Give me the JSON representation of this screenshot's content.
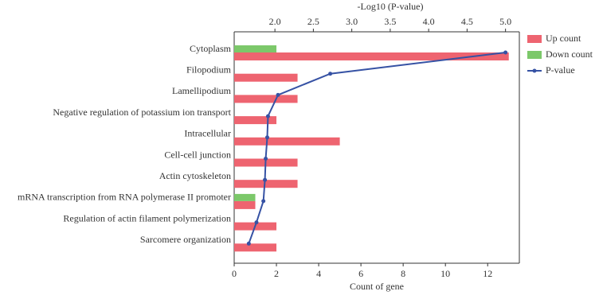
{
  "chart_data": {
    "type": "bar",
    "orientation": "horizontal",
    "categories": [
      "Cytoplasm",
      "Filopodium",
      "Lamellipodium",
      "Negative regulation of potassium ion transport",
      "Intracellular",
      "Cell-cell junction",
      "Actin cytoskeleton",
      "mRNA transcription from RNA polymerase II promoter",
      "Regulation of actin filament polymerization",
      "Sarcomere organization"
    ],
    "series": [
      {
        "name": "Up count",
        "color": "#ee6470",
        "values": [
          13,
          3,
          3,
          2,
          5,
          3,
          3,
          1,
          2,
          2
        ]
      },
      {
        "name": "Down count",
        "color": "#7cc86a",
        "values": [
          2,
          0,
          0,
          0,
          0,
          0,
          0,
          1,
          0,
          0
        ]
      },
      {
        "name": "P-value",
        "color": "#3652a4",
        "axis": "x2",
        "values": [
          5.0,
          2.72,
          2.04,
          1.91,
          1.9,
          1.88,
          1.87,
          1.85,
          1.76,
          1.66
        ]
      }
    ],
    "xlabel": "Count of gene",
    "xlim": [
      0,
      13.5
    ],
    "xticks": [
      0,
      2,
      4,
      6,
      8,
      10,
      12
    ],
    "x2label": "-Log10 (P-value)",
    "x2lim": [
      1.47,
      5.18
    ],
    "x2ticks": [
      {
        "value": 2,
        "label": "2.0"
      },
      2.5,
      {
        "value": 3,
        "label": "3.0"
      },
      3.5,
      {
        "value": 4,
        "label": "4.0"
      },
      4.5,
      {
        "value": 5,
        "label": "5.0"
      }
    ],
    "legend": "right"
  }
}
